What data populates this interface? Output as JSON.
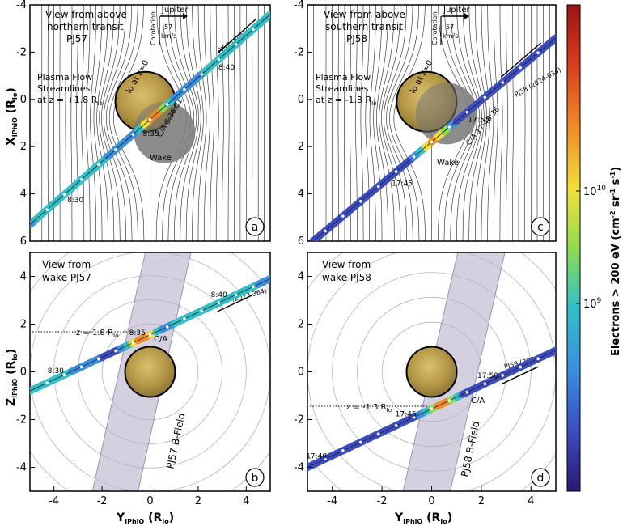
{
  "chart_data": [
    {
      "panel_label": "a",
      "type": "line",
      "title": "View from above",
      "subtitle": [
        "northern transit",
        "PJ57"
      ],
      "ylabel": "X",
      "ylabel_sub": "IPhiO",
      "ylabel_unit": "(R",
      "ylabel_unit_sub": "Io",
      "yticks": [
        "-4",
        "-2",
        "0",
        "2",
        "4",
        "6"
      ],
      "xlim": [
        -5,
        5
      ],
      "ylim": [
        -4,
        6
      ],
      "y_inverted": true,
      "annotations": {
        "jupiter": "Jupiter",
        "corotation": "Corotation",
        "speed": "57",
        "speed_unit": "km/s",
        "io_label": "Io at z=0",
        "stream_1": "Plasma Flow",
        "stream_2": "Streamlines",
        "stream_3": "at z = +1.8 R",
        "stream_3_sub": "Io",
        "wake": "Wake",
        "ca": "C/A 8:36:01",
        "perijove": "PJ57 (2023-364)"
      },
      "trajectory": {
        "from": [
          -5,
          5.3
        ],
        "to": [
          5,
          -3.6
        ],
        "times": [
          "8:30",
          "8:35",
          "8:40"
        ],
        "time_y": [
          3.8,
          1.0,
          -1.8
        ]
      }
    },
    {
      "panel_label": "c",
      "type": "line",
      "title": "View from above",
      "subtitle": [
        "southern transit",
        "PJ58"
      ],
      "xlim": [
        -5,
        5
      ],
      "ylim": [
        -4,
        6
      ],
      "y_inverted": true,
      "annotations": {
        "jupiter": "Jupiter",
        "corotation": "Corotation",
        "speed": "57",
        "speed_unit": "km/s",
        "io_label": "Io at z=0",
        "stream_1": "Plasma Flow",
        "stream_2": "Streamlines",
        "stream_3": "at z = -1.3 R",
        "stream_3_sub": "Io",
        "wake": "Wake",
        "ca": "C/A 17:48:36",
        "perijove": "PJ58 (2024-034)"
      },
      "trajectory": {
        "from": [
          -5,
          6.2
        ],
        "to": [
          5,
          -2.6
        ],
        "times": [
          "17:45",
          "17:50"
        ],
        "time_y": [
          3.1,
          0.4
        ]
      }
    },
    {
      "panel_label": "b",
      "type": "line",
      "title": "View from",
      "subtitle": [
        "wake PJ57"
      ],
      "ylabel": "Z",
      "ylabel_sub": "IPhiO",
      "ylabel_unit": "(R",
      "ylabel_unit_sub": "Io",
      "xlabel": "Y",
      "xlabel_sub": "IPhiO",
      "xlabel_unit": "(R",
      "xlabel_unit_sub": "Io",
      "yticks": [
        "4",
        "2",
        "0",
        "-2",
        "-4"
      ],
      "xticks": [
        "-4",
        "-2",
        "0",
        "2",
        "4"
      ],
      "xlim": [
        -5,
        5
      ],
      "ylim": [
        -5,
        5
      ],
      "annotations": {
        "z_level": "z = 1.8 R",
        "z_level_sub": "Io",
        "ca": "C/A",
        "bfield": "PJ57 B-Field",
        "perijove": "PJ57 (2023-364)"
      },
      "trajectory": {
        "from": [
          -5,
          -0.8
        ],
        "to": [
          5,
          3.9
        ],
        "times": [
          "8:30",
          "8:35",
          "8:40"
        ],
        "time_x": [
          -4.0,
          -0.6,
          2.8
        ]
      }
    },
    {
      "panel_label": "d",
      "type": "line",
      "title": "View from",
      "subtitle": [
        "wake PJ58"
      ],
      "xlabel": "Y",
      "xlabel_sub": "IPhiO",
      "xlabel_unit": "(R",
      "xlabel_unit_sub": "Io",
      "xticks": [
        "-4",
        "-2",
        "0",
        "2",
        "4"
      ],
      "xlim": [
        -5,
        5
      ],
      "ylim": [
        -5,
        5
      ],
      "annotations": {
        "z_level": "z = -1.3 R",
        "z_level_sub": "Io",
        "ca": "C/A",
        "bfield": "PJ58 B-Field",
        "perijove": "PJ58 (2024-034)"
      },
      "trajectory": {
        "from": [
          -5,
          -4.0
        ],
        "to": [
          5,
          0.9
        ],
        "times": [
          "17:40",
          "17:45",
          "17:50"
        ],
        "time_x": [
          -4.8,
          -1.2,
          2.1
        ]
      }
    }
  ],
  "colorbar": {
    "label": "Electrons > 200 eV (cm",
    "label_exp1": "-2",
    "label_mid": " sr",
    "label_exp2": "-1",
    "label_end": " s",
    "label_exp3": "-1",
    "label_close": ")",
    "tick_base": "10",
    "tick_exps": [
      "10",
      "9"
    ],
    "tick_values": [
      10000000000.0,
      1000000000.0
    ],
    "scale": "log",
    "colors": [
      "#2a1a6e",
      "#3b4cc0",
      "#3a8ee0",
      "#32c0c8",
      "#8fdc50",
      "#f0e03a",
      "#f08a28",
      "#d83c1e",
      "#9a1414"
    ]
  }
}
